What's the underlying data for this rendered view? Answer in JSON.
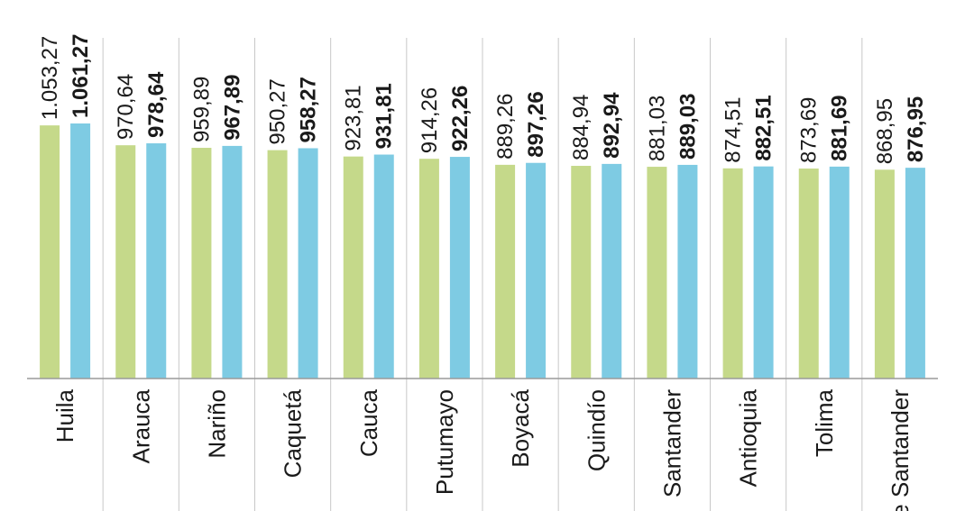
{
  "chart_data": {
    "type": "bar",
    "categories": [
      "Huila",
      "Arauca",
      "Nariño",
      "Caquetá",
      "Cauca",
      "Putumayo",
      "Boyacá",
      "Quindío",
      "Santander",
      "Antioquia",
      "Tolima",
      "de Santander"
    ],
    "series": [
      {
        "values": [
          1053.27,
          970.64,
          959.89,
          950.27,
          923.81,
          914.26,
          889.26,
          884.94,
          881.03,
          874.51,
          873.69,
          868.95
        ],
        "labels": [
          "1.053,27",
          "970,64",
          "959,89",
          "950,27",
          "923,81",
          "914,26",
          "889,26",
          "884,94",
          "881,03",
          "874,51",
          "873,69",
          "868,95"
        ],
        "color": "#c5d98a"
      },
      {
        "values": [
          1061.27,
          978.64,
          967.89,
          958.27,
          931.81,
          922.26,
          897.26,
          892.94,
          889.03,
          882.51,
          881.69,
          876.95
        ],
        "labels": [
          "1.061,27",
          "978,64",
          "967,89",
          "958,27",
          "931,81",
          "922,26",
          "897,26",
          "892,94",
          "889,03",
          "882,51",
          "881,69",
          "876,95"
        ],
        "color": "#7ecbe3"
      }
    ],
    "ylim": [
      0,
      1061.27
    ],
    "grid": false,
    "legend": "none"
  }
}
